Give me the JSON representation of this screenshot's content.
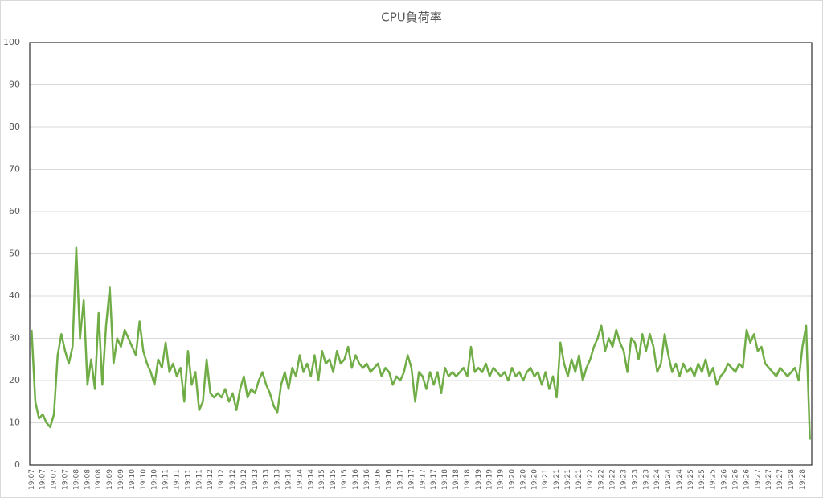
{
  "chart_data": {
    "type": "line",
    "title": "CPU負荷率",
    "categories": [
      "19:07",
      null,
      null,
      "19:07",
      null,
      null,
      "19:07",
      null,
      null,
      "19:07",
      null,
      null,
      "19:08",
      null,
      null,
      "19:08",
      null,
      null,
      "19:08",
      null,
      null,
      "19:09",
      null,
      null,
      "19:09",
      null,
      null,
      "19:10",
      null,
      null,
      "19:10",
      null,
      null,
      "19:10",
      null,
      null,
      "19:11",
      null,
      null,
      "19:11",
      null,
      null,
      "19:11",
      null,
      null,
      "19:11",
      null,
      null,
      "19:12",
      null,
      null,
      "19:12",
      null,
      null,
      "19:12",
      null,
      null,
      "19:12",
      null,
      null,
      "19:13",
      null,
      null,
      "19:13",
      null,
      null,
      "19:13",
      null,
      null,
      "19:14",
      null,
      null,
      "19:14",
      null,
      null,
      "19:14",
      null,
      null,
      "19:15",
      null,
      null,
      "19:15",
      null,
      null,
      "19:15",
      null,
      null,
      "19:16",
      null,
      null,
      "19:16",
      null,
      null,
      "19:16",
      null,
      null,
      "19:16",
      null,
      null,
      "19:17",
      null,
      null,
      "19:17",
      null,
      null,
      "19:17",
      null,
      null,
      "19:17",
      null,
      null,
      "19:18",
      null,
      null,
      "19:18",
      null,
      null,
      "19:18",
      null,
      null,
      "19:19",
      null,
      null,
      "19:19",
      null,
      null,
      "19:19",
      null,
      null,
      "19:20",
      null,
      null,
      "19:20",
      null,
      null,
      "19:20",
      null,
      null,
      "19:21",
      null,
      null,
      "19:21",
      null,
      null,
      "19:21",
      null,
      null,
      "19:21",
      null,
      null,
      "19:22",
      null,
      null,
      "19:22",
      null,
      null,
      "19:22",
      null,
      null,
      "19:23",
      null,
      null,
      "19:23",
      null,
      null,
      "19:23",
      null,
      null,
      "19:24",
      null,
      null,
      "19:24",
      null,
      null,
      "19:24",
      null,
      null,
      "19:25",
      null,
      null,
      "19:25",
      null,
      null,
      "19:25",
      null,
      null,
      "19:26",
      null,
      null,
      "19:26",
      null,
      null,
      "19:26",
      null,
      null,
      "19:27",
      null,
      null,
      "19:27",
      null,
      null,
      "19:27",
      null,
      null,
      "19:28",
      null,
      null,
      "19:28",
      null,
      null
    ],
    "values": [
      32,
      15,
      11,
      12,
      10,
      9,
      12,
      26,
      31,
      27,
      24,
      28,
      51.5,
      30,
      39,
      19,
      25,
      18,
      36,
      19,
      33,
      42,
      24,
      30,
      28,
      32,
      30,
      28,
      26,
      34,
      27,
      24,
      22,
      19,
      25,
      23,
      29,
      22,
      24,
      21,
      23,
      15,
      27,
      19,
      22,
      13,
      15,
      25,
      17,
      16,
      17,
      16,
      18,
      15,
      17,
      13,
      18,
      21,
      16,
      18,
      17,
      20,
      22,
      19,
      17,
      14,
      12.5,
      19,
      22,
      18,
      23,
      21,
      26,
      22,
      24,
      21,
      26,
      20,
      27,
      24,
      25,
      22,
      27,
      24,
      25,
      28,
      23,
      26,
      24,
      23,
      24,
      22,
      23,
      24,
      21,
      23,
      22,
      19,
      21,
      20,
      22,
      26,
      23,
      15,
      22,
      21,
      18,
      22,
      19,
      22,
      17,
      23,
      21,
      22,
      21,
      22,
      23,
      21,
      28,
      22,
      23,
      22,
      24,
      21,
      23,
      22,
      21,
      22,
      20,
      23,
      21,
      22,
      20,
      22,
      23,
      21,
      22,
      19,
      22,
      18,
      21,
      16,
      29,
      24,
      21,
      25,
      22,
      26,
      20,
      23,
      25,
      28,
      30,
      33,
      27,
      30,
      28,
      32,
      29,
      27,
      22,
      30,
      29,
      25,
      31,
      27,
      31,
      28,
      22,
      24,
      31,
      26,
      22,
      24,
      21,
      24,
      22,
      23,
      21,
      24,
      22,
      25,
      21,
      23,
      19,
      21,
      22,
      24,
      23,
      22,
      24,
      23,
      32,
      29,
      31,
      27,
      28,
      24,
      23,
      22,
      21,
      23,
      22,
      21,
      22,
      23,
      20,
      28,
      33,
      6
    ],
    "color": "#70ad47",
    "ylim": [
      0,
      100
    ],
    "yticks": [
      0,
      10,
      20,
      30,
      40,
      50,
      60,
      70,
      80,
      90,
      100
    ],
    "grid": true
  }
}
